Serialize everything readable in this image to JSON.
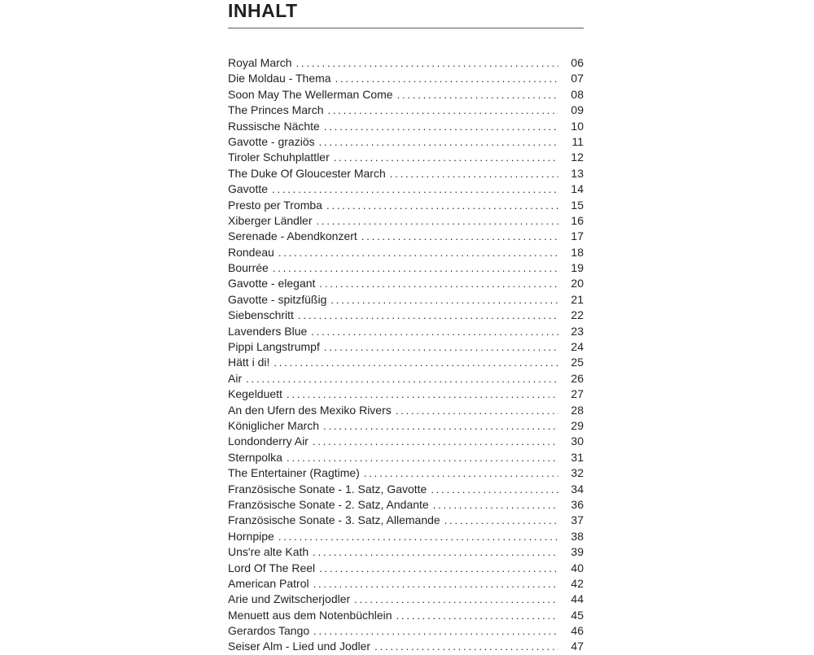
{
  "page": {
    "title": "INHALT"
  },
  "toc": {
    "entries": [
      {
        "title": "Royal March",
        "page": "06"
      },
      {
        "title": "Die Moldau - Thema",
        "page": "07"
      },
      {
        "title": "Soon May The Wellerman Come",
        "page": "08"
      },
      {
        "title": "The Princes March",
        "page": "09"
      },
      {
        "title": "Russische Nächte",
        "page": "10"
      },
      {
        "title": "Gavotte - graziös",
        "page": "11"
      },
      {
        "title": "Tiroler Schuhplattler",
        "page": "12"
      },
      {
        "title": "The Duke Of Gloucester March",
        "page": "13"
      },
      {
        "title": "Gavotte",
        "page": "14"
      },
      {
        "title": "Presto per Tromba",
        "page": "15"
      },
      {
        "title": "Xiberger Ländler",
        "page": "16"
      },
      {
        "title": "Serenade - Abendkonzert",
        "page": "17"
      },
      {
        "title": "Rondeau",
        "page": "18"
      },
      {
        "title": "Bourrée",
        "page": "19"
      },
      {
        "title": "Gavotte - elegant",
        "page": "20"
      },
      {
        "title": "Gavotte - spitzfüßig",
        "page": "21"
      },
      {
        "title": "Siebenschritt",
        "page": "22"
      },
      {
        "title": "Lavenders Blue",
        "page": "23"
      },
      {
        "title": "Pippi Langstrumpf",
        "page": "24"
      },
      {
        "title": "Hätt i di!",
        "page": "25"
      },
      {
        "title": "Air",
        "page": "26"
      },
      {
        "title": "Kegelduett",
        "page": "27"
      },
      {
        "title": "An den Ufern des Mexiko Rivers",
        "page": "28"
      },
      {
        "title": "Königlicher March",
        "page": "29"
      },
      {
        "title": "Londonderry Air",
        "page": "30"
      },
      {
        "title": "Sternpolka",
        "page": "31"
      },
      {
        "title": "The Entertainer (Ragtime)",
        "page": "32"
      },
      {
        "title": "Französische Sonate - 1. Satz, Gavotte",
        "page": "34"
      },
      {
        "title": "Französische Sonate - 2. Satz, Andante",
        "page": "36"
      },
      {
        "title": "Französische Sonate - 3. Satz, Allemande",
        "page": "37"
      },
      {
        "title": "Hornpipe",
        "page": "38"
      },
      {
        "title": "Uns're alte Kath",
        "page": "39"
      },
      {
        "title": "Lord Of The Reel",
        "page": "40"
      },
      {
        "title": "American Patrol",
        "page": "42"
      },
      {
        "title": "Arie und Zwitscherjodler",
        "page": "44"
      },
      {
        "title": "Menuett aus dem Notenbüchlein",
        "page": "45"
      },
      {
        "title": "Gerardos Tango",
        "page": "46"
      },
      {
        "title": "Seiser Alm - Lied und Jodler",
        "page": "47"
      }
    ]
  }
}
